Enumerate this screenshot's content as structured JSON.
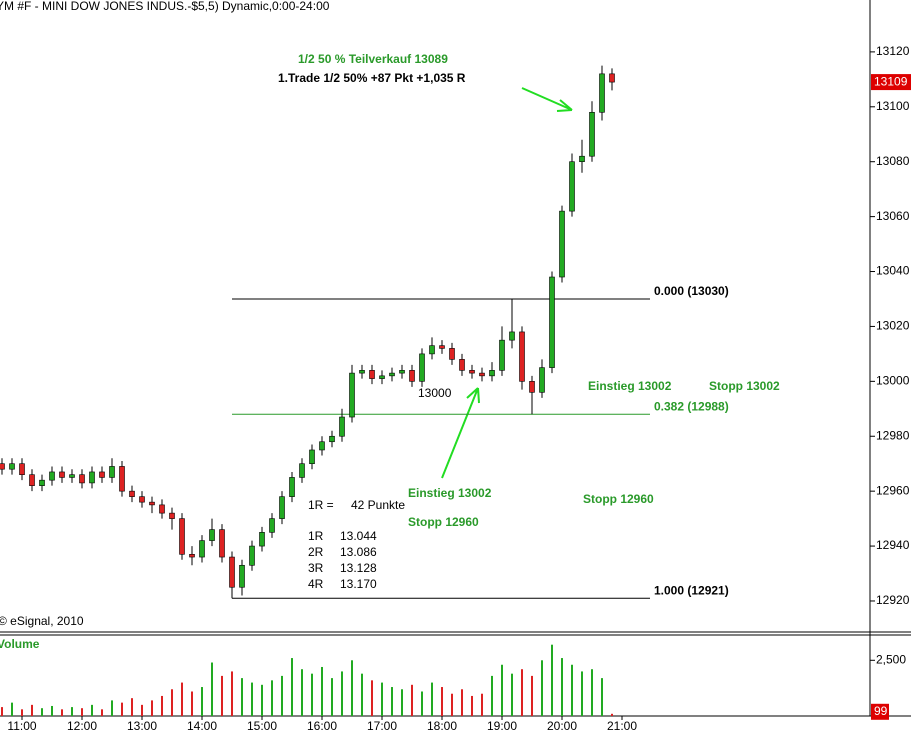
{
  "chart_data": {
    "type": "candlestick",
    "title": "YM #F - MINI DOW JONES INDUS.-$5,5) Dynamic,0:00-24:00",
    "x": [
      640,
      650,
      660,
      670,
      680,
      690,
      700,
      710,
      720,
      730,
      740,
      750,
      760,
      770,
      780,
      790,
      800,
      810,
      820,
      830,
      840,
      850,
      860,
      870,
      880,
      890,
      900,
      910,
      920,
      930,
      940,
      950,
      960,
      970,
      980,
      990,
      1000,
      1010,
      1020,
      1030,
      1040,
      1050,
      1060,
      1070,
      1080,
      1090,
      1100,
      1110,
      1120,
      1130,
      1140,
      1150,
      1160,
      1170,
      1180,
      1190,
      1200,
      1210,
      1220,
      1230,
      1240,
      1250
    ],
    "open": [
      12970,
      12968,
      12970,
      12966,
      12962,
      12964,
      12967,
      12965,
      12966,
      12963,
      12967,
      12965,
      12969,
      12960,
      12958,
      12956,
      12955,
      12952,
      12950,
      12937,
      12936,
      12942,
      12946,
      12936,
      12925,
      12933,
      12940,
      12945,
      12950,
      12958,
      12965,
      12970,
      12975,
      12978,
      12980,
      12987,
      13003,
      13004,
      13001,
      13002,
      13003,
      13004,
      13000,
      13010,
      13013,
      13012,
      13008,
      13004,
      13003,
      13002,
      13004,
      13015,
      13018,
      13000,
      12996,
      13005,
      13038,
      13062,
      13080,
      13082,
      13098,
      13112
    ],
    "high": [
      12972,
      12972,
      12972,
      12968,
      12966,
      12969,
      12969,
      12968,
      12968,
      12969,
      12969,
      12972,
      12971,
      12962,
      12960,
      12958,
      12957,
      12954,
      12952,
      12940,
      12944,
      12950,
      12948,
      12938,
      12935,
      12942,
      12947,
      12952,
      12960,
      12967,
      12972,
      12977,
      12980,
      12982,
      12990,
      13006,
      13006,
      13006,
      13004,
      13005,
      13006,
      13006,
      13012,
      13016,
      13015,
      13014,
      13010,
      13006,
      13005,
      13007,
      13020,
      13030,
      13020,
      13002,
      13008,
      13040,
      13064,
      13083,
      13088,
      13102,
      13115,
      13114
    ],
    "low": [
      12966,
      12966,
      12964,
      12960,
      12960,
      12962,
      12963,
      12963,
      12961,
      12961,
      12963,
      12963,
      12958,
      12956,
      12954,
      12952,
      12950,
      12946,
      12935,
      12933,
      12934,
      12940,
      12934,
      12921,
      12922,
      12931,
      12938,
      12943,
      12948,
      12956,
      12963,
      12968,
      12973,
      12976,
      12978,
      12985,
      13001,
      12999,
      12999,
      13000,
      13001,
      12998,
      12998,
      13008,
      13010,
      13006,
      13002,
      13001,
      13000,
      13000,
      13002,
      13012,
      12997,
      12988,
      12994,
      13003,
      13036,
      13060,
      13076,
      13080,
      13095,
      13106
    ],
    "close": [
      12968,
      12970,
      12966,
      12962,
      12964,
      12967,
      12965,
      12966,
      12963,
      12967,
      12965,
      12969,
      12960,
      12958,
      12956,
      12955,
      12952,
      12950,
      12937,
      12936,
      12942,
      12946,
      12936,
      12925,
      12933,
      12940,
      12945,
      12950,
      12958,
      12965,
      12970,
      12975,
      12978,
      12980,
      12987,
      13003,
      13004,
      13001,
      13002,
      13003,
      13004,
      13000,
      13010,
      13013,
      13012,
      13008,
      13004,
      13003,
      13002,
      13004,
      13015,
      13018,
      13000,
      12996,
      13005,
      13038,
      13062,
      13080,
      13082,
      13098,
      13112,
      13109
    ],
    "xlim": [
      638,
      1508
    ],
    "ylim": [
      12908.7,
      13138.9
    ],
    "xticks": [
      {
        "value": 660,
        "label": "11:00"
      },
      {
        "value": 720,
        "label": "12:00"
      },
      {
        "value": 780,
        "label": "13:00"
      },
      {
        "value": 840,
        "label": "14:00"
      },
      {
        "value": 900,
        "label": "15:00"
      },
      {
        "value": 960,
        "label": "16:00"
      },
      {
        "value": 1020,
        "label": "17:00"
      },
      {
        "value": 1080,
        "label": "18:00"
      },
      {
        "value": 1140,
        "label": "19:00"
      },
      {
        "value": 1200,
        "label": "20:00"
      },
      {
        "value": 1260,
        "label": "21:00"
      }
    ],
    "yticks": [
      12920,
      12940,
      12960,
      12980,
      13000,
      13020,
      13040,
      13060,
      13080,
      13100,
      13120
    ],
    "up_color": "#22aa22",
    "down_color": "#dd2222",
    "levels": [
      {
        "value": 13030,
        "label": "0.000 (13030)",
        "color": "#000000"
      },
      {
        "value": 12988,
        "label": "0.382 (12988)",
        "color": "#2a9a2a"
      },
      {
        "value": 12921,
        "label": "1.000 (12921)",
        "color": "#000000"
      }
    ],
    "annotations": [
      "1/2 50 % Teilverkauf 13089",
      "1.Trade 1/2 50% +87 Pkt +1,035 R",
      "13000",
      "Einstieg 13002",
      "Stopp 13002",
      "Einstieg 13002",
      "Stopp 12960",
      "Stopp 12960",
      "1R =",
      "42 Punkte",
      "1R",
      "13.044",
      "2R",
      "13.086",
      "3R",
      "13.128",
      "4R",
      "13.170",
      "© eSignal, 2010"
    ],
    "volume": {
      "title": "Volume",
      "values": [
        400,
        600,
        300,
        500,
        350,
        450,
        300,
        400,
        350,
        500,
        300,
        700,
        600,
        800,
        500,
        700,
        900,
        1200,
        1500,
        1100,
        1300,
        2400,
        1800,
        2000,
        1700,
        1500,
        1400,
        1600,
        1800,
        2600,
        2100,
        1900,
        2200,
        1700,
        2000,
        2500,
        1900,
        1600,
        1500,
        1300,
        1200,
        1400,
        1100,
        1500,
        1300,
        1000,
        1200,
        900,
        1000,
        1800,
        2300,
        1900,
        2100,
        1800,
        2500,
        3200,
        2600,
        2300,
        2000,
        2100,
        1700,
        99
      ],
      "ylim": [
        0,
        3590
      ],
      "yticks": [
        {
          "value": 2500,
          "label": "2,500"
        }
      ]
    }
  }
}
